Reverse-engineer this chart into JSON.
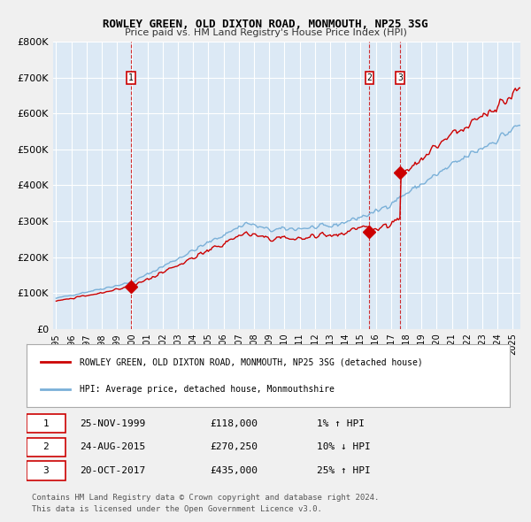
{
  "title": "ROWLEY GREEN, OLD DIXTON ROAD, MONMOUTH, NP25 3SG",
  "subtitle": "Price paid vs. HM Land Registry's House Price Index (HPI)",
  "xlabel": "",
  "ylabel": "",
  "ylim": [
    0,
    800000
  ],
  "yticks": [
    0,
    100000,
    200000,
    300000,
    400000,
    500000,
    600000,
    700000,
    800000
  ],
  "ytick_labels": [
    "£0",
    "£100K",
    "£200K",
    "£300K",
    "£400K",
    "£500K",
    "£600K",
    "£700K",
    "£800K"
  ],
  "background_color": "#dce9f5",
  "plot_bg_color": "#dce9f5",
  "hpi_line_color": "#7ab0d8",
  "price_line_color": "#cc0000",
  "marker_color": "#cc0000",
  "vline_color": "#cc0000",
  "sale_points": [
    {
      "date_idx": 59,
      "price": 118000,
      "label": "1",
      "date_str": "25-NOV-1999",
      "hpi_pct": "1% ↑ HPI"
    },
    {
      "date_idx": 247,
      "price": 270250,
      "label": "2",
      "date_str": "24-AUG-2015",
      "hpi_pct": "10% ↓ HPI"
    },
    {
      "date_idx": 271,
      "price": 435000,
      "label": "3",
      "date_str": "20-OCT-2017",
      "hpi_pct": "25% ↑ HPI"
    }
  ],
  "legend_entries": [
    "ROWLEY GREEN, OLD DIXTON ROAD, MONMOUTH, NP25 3SG (detached house)",
    "HPI: Average price, detached house, Monmouthshire"
  ],
  "footer_lines": [
    "Contains HM Land Registry data © Crown copyright and database right 2024.",
    "This data is licensed under the Open Government Licence v3.0."
  ],
  "table_rows": [
    [
      "1",
      "25-NOV-1999",
      "£118,000",
      "1% ↑ HPI"
    ],
    [
      "2",
      "24-AUG-2015",
      "£270,250",
      "10% ↓ HPI"
    ],
    [
      "3",
      "20-OCT-2017",
      "£435,000",
      "25% ↑ HPI"
    ]
  ]
}
